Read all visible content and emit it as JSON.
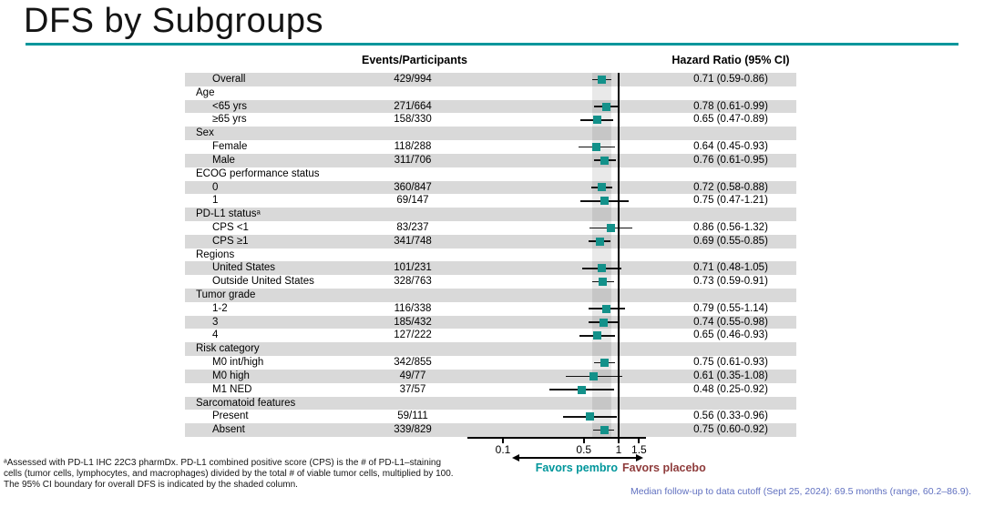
{
  "title": "DFS by Subgroups",
  "columns": {
    "events": "Events/Participants",
    "hr": "Hazard Ratio (95% CI)"
  },
  "chart_data": {
    "type": "forest",
    "x_scale": "log",
    "x_ticks": [
      {
        "v": 0.1,
        "label": "0.1"
      },
      {
        "v": 0.5,
        "label": "0.5"
      },
      {
        "v": 1,
        "label": "1"
      },
      {
        "v": 1.5,
        "label": "1.5"
      }
    ],
    "reference_line": 1,
    "shaded_band": {
      "low": 0.59,
      "high": 0.86
    },
    "favors_left": "Favors pembro",
    "favors_right": "Favors placebo",
    "rows": [
      {
        "label": "Overall",
        "header": false,
        "events": "429/994",
        "hr": 0.71,
        "low": 0.59,
        "high": 0.86,
        "hr_text": "0.71 (0.59-0.86)"
      },
      {
        "label": "Age",
        "header": true
      },
      {
        "label": "<65 yrs",
        "header": false,
        "events": "271/664",
        "hr": 0.78,
        "low": 0.61,
        "high": 0.99,
        "hr_text": "0.78 (0.61-0.99)"
      },
      {
        "label": "≥65 yrs",
        "header": false,
        "events": "158/330",
        "hr": 0.65,
        "low": 0.47,
        "high": 0.89,
        "hr_text": "0.65 (0.47-0.89)"
      },
      {
        "label": "Sex",
        "header": true
      },
      {
        "label": "Female",
        "header": false,
        "events": "118/288",
        "hr": 0.64,
        "low": 0.45,
        "high": 0.93,
        "hr_text": "0.64 (0.45-0.93)"
      },
      {
        "label": "Male",
        "header": false,
        "events": "311/706",
        "hr": 0.76,
        "low": 0.61,
        "high": 0.95,
        "hr_text": "0.76 (0.61-0.95)"
      },
      {
        "label": "ECOG performance status",
        "header": true
      },
      {
        "label": "0",
        "header": false,
        "events": "360/847",
        "hr": 0.72,
        "low": 0.58,
        "high": 0.88,
        "hr_text": "0.72 (0.58-0.88)"
      },
      {
        "label": "1",
        "header": false,
        "events": "69/147",
        "hr": 0.75,
        "low": 0.47,
        "high": 1.21,
        "hr_text": "0.75 (0.47-1.21)"
      },
      {
        "label": "PD-L1 statusᵃ",
        "header": true
      },
      {
        "label": "CPS <1",
        "header": false,
        "events": "83/237",
        "hr": 0.86,
        "low": 0.56,
        "high": 1.32,
        "hr_text": "0.86 (0.56-1.32)"
      },
      {
        "label": "CPS ≥1",
        "header": false,
        "events": "341/748",
        "hr": 0.69,
        "low": 0.55,
        "high": 0.85,
        "hr_text": "0.69 (0.55-0.85)"
      },
      {
        "label": "Regions",
        "header": true
      },
      {
        "label": "United States",
        "header": false,
        "events": "101/231",
        "hr": 0.71,
        "low": 0.48,
        "high": 1.05,
        "hr_text": "0.71 (0.48-1.05)"
      },
      {
        "label": "Outside United States",
        "header": false,
        "events": "328/763",
        "hr": 0.73,
        "low": 0.59,
        "high": 0.91,
        "hr_text": "0.73 (0.59-0.91)"
      },
      {
        "label": "Tumor grade",
        "header": true
      },
      {
        "label": "1-2",
        "header": false,
        "events": "116/338",
        "hr": 0.79,
        "low": 0.55,
        "high": 1.14,
        "hr_text": "0.79 (0.55-1.14)"
      },
      {
        "label": "3",
        "header": false,
        "events": "185/432",
        "hr": 0.74,
        "low": 0.55,
        "high": 0.98,
        "hr_text": "0.74 (0.55-0.98)"
      },
      {
        "label": "4",
        "header": false,
        "events": "127/222",
        "hr": 0.65,
        "low": 0.46,
        "high": 0.93,
        "hr_text": "0.65 (0.46-0.93)"
      },
      {
        "label": "Risk category",
        "header": true
      },
      {
        "label": "M0 int/high",
        "header": false,
        "events": "342/855",
        "hr": 0.75,
        "low": 0.61,
        "high": 0.93,
        "hr_text": "0.75 (0.61-0.93)"
      },
      {
        "label": "M0 high",
        "header": false,
        "events": "49/77",
        "hr": 0.61,
        "low": 0.35,
        "high": 1.08,
        "hr_text": "0.61 (0.35-1.08)"
      },
      {
        "label": "M1 NED",
        "header": false,
        "events": "37/57",
        "hr": 0.48,
        "low": 0.25,
        "high": 0.92,
        "hr_text": "0.48 (0.25-0.92)"
      },
      {
        "label": "Sarcomatoid features",
        "header": true
      },
      {
        "label": "Present",
        "header": false,
        "events": "59/111",
        "hr": 0.56,
        "low": 0.33,
        "high": 0.96,
        "hr_text": "0.56 (0.33-0.96)"
      },
      {
        "label": "Absent",
        "header": false,
        "events": "339/829",
        "hr": 0.75,
        "low": 0.6,
        "high": 0.92,
        "hr_text": "0.75 (0.60-0.92)"
      }
    ]
  },
  "footnotes": [
    "ᵃAssessed with PD-L1 IHC 22C3 pharmDx. PD-L1 combined positive score (CPS) is the # of PD-L1–staining",
    "cells (tumor cells, lymphocytes, and macrophages) divided by the total # of viable tumor cells, multiplied by 100.",
    "The 95% CI boundary for overall DFS is indicated by the shaded column."
  ],
  "median_note": "Median follow-up to data cutoff (Sept 25, 2024): 69.5 months (range, 60.2–86.9).",
  "colors": {
    "accent_teal": "#00969B",
    "marker_teal": "#13918A",
    "favors_placebo_maroon": "#8E3B3B",
    "note_blue": "#6070C0",
    "row_band_gray": "#D9D9D9"
  }
}
